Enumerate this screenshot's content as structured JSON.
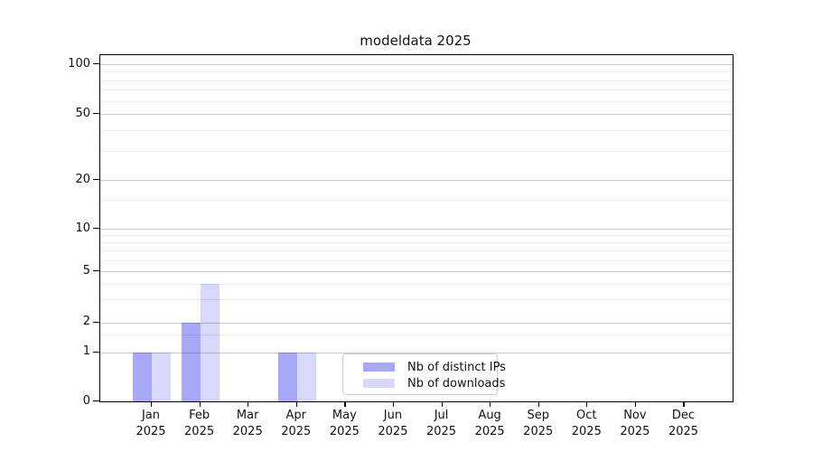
{
  "title": "modeldata 2025",
  "chart_data": {
    "type": "bar",
    "title": "modeldata 2025",
    "xlabel": "",
    "ylabel": "",
    "categories": [
      "Jan 2025",
      "Feb 2025",
      "Mar 2025",
      "Apr 2025",
      "May 2025",
      "Jun 2025",
      "Jul 2025",
      "Aug 2025",
      "Sep 2025",
      "Oct 2025",
      "Nov 2025",
      "Dec 2025"
    ],
    "series": [
      {
        "name": "Nb of distinct IPs",
        "color": "#a8a8f8",
        "values": [
          1,
          2,
          0,
          1,
          0,
          0,
          0,
          0,
          0,
          0,
          0,
          0
        ]
      },
      {
        "name": "Nb of downloads",
        "color": "#d8d8f8",
        "values": [
          1,
          4,
          0,
          1,
          0,
          0,
          0,
          0,
          0,
          0,
          0,
          0
        ]
      }
    ],
    "yscale": "symlog",
    "ylim": [
      0,
      100
    ],
    "y_major_ticks": [
      0,
      1,
      2,
      5,
      10,
      20,
      50,
      100
    ],
    "y_minor_ticks": [
      1.5,
      3,
      4,
      6,
      7,
      8,
      9,
      15,
      30,
      40,
      60,
      70,
      80,
      90
    ],
    "grid": true,
    "legend_position": "lower center"
  },
  "legend": {
    "items": [
      {
        "label": "Nb of distinct IPs",
        "color": "#a8a8f8"
      },
      {
        "label": "Nb of downloads",
        "color": "#d8d8f8"
      }
    ]
  },
  "colors": {
    "bar_distinct_ips": "#a8a8f8",
    "bar_downloads": "#d8d8f8",
    "grid_major": "#cccccc",
    "grid_minor": "#ececec",
    "spine": "#000000"
  }
}
